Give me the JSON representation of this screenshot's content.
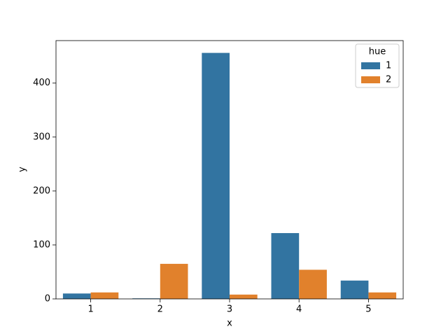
{
  "chart_data": {
    "type": "bar",
    "categories": [
      "1",
      "2",
      "3",
      "4",
      "5"
    ],
    "xlabel": "x",
    "ylabel": "y",
    "legend_title": "hue",
    "legend": "upper right",
    "series": [
      {
        "name": "1",
        "color": "#3274a1",
        "values": [
          10,
          1,
          456,
          122,
          34
        ]
      },
      {
        "name": "2",
        "color": "#e1812c",
        "values": [
          12,
          65,
          8,
          54,
          12
        ]
      }
    ],
    "ylim": [
      0,
      478.8
    ],
    "yticks": [
      0,
      100,
      200,
      300,
      400
    ],
    "grid": false
  }
}
